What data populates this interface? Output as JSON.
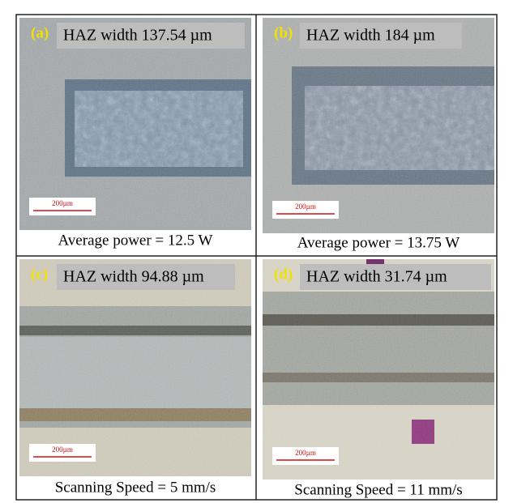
{
  "panels": [
    {
      "label": "(a)",
      "haz": "HAZ width 137.54 µm",
      "scale": "200µm",
      "caption": "Average power = 12.5 W"
    },
    {
      "label": "(b)",
      "haz": "HAZ width 184 µm",
      "scale": "200µm",
      "caption": "Average power = 13.75 W"
    },
    {
      "label": "(c)",
      "haz": "HAZ width 94.88 µm",
      "scale": "200µm",
      "caption": "Scanning Speed = 5 mm/s"
    },
    {
      "label": "(d)",
      "haz": "HAZ width 31.74 µm",
      "scale": "200µm",
      "caption": "Scanning Speed = 11 mm/s"
    }
  ]
}
